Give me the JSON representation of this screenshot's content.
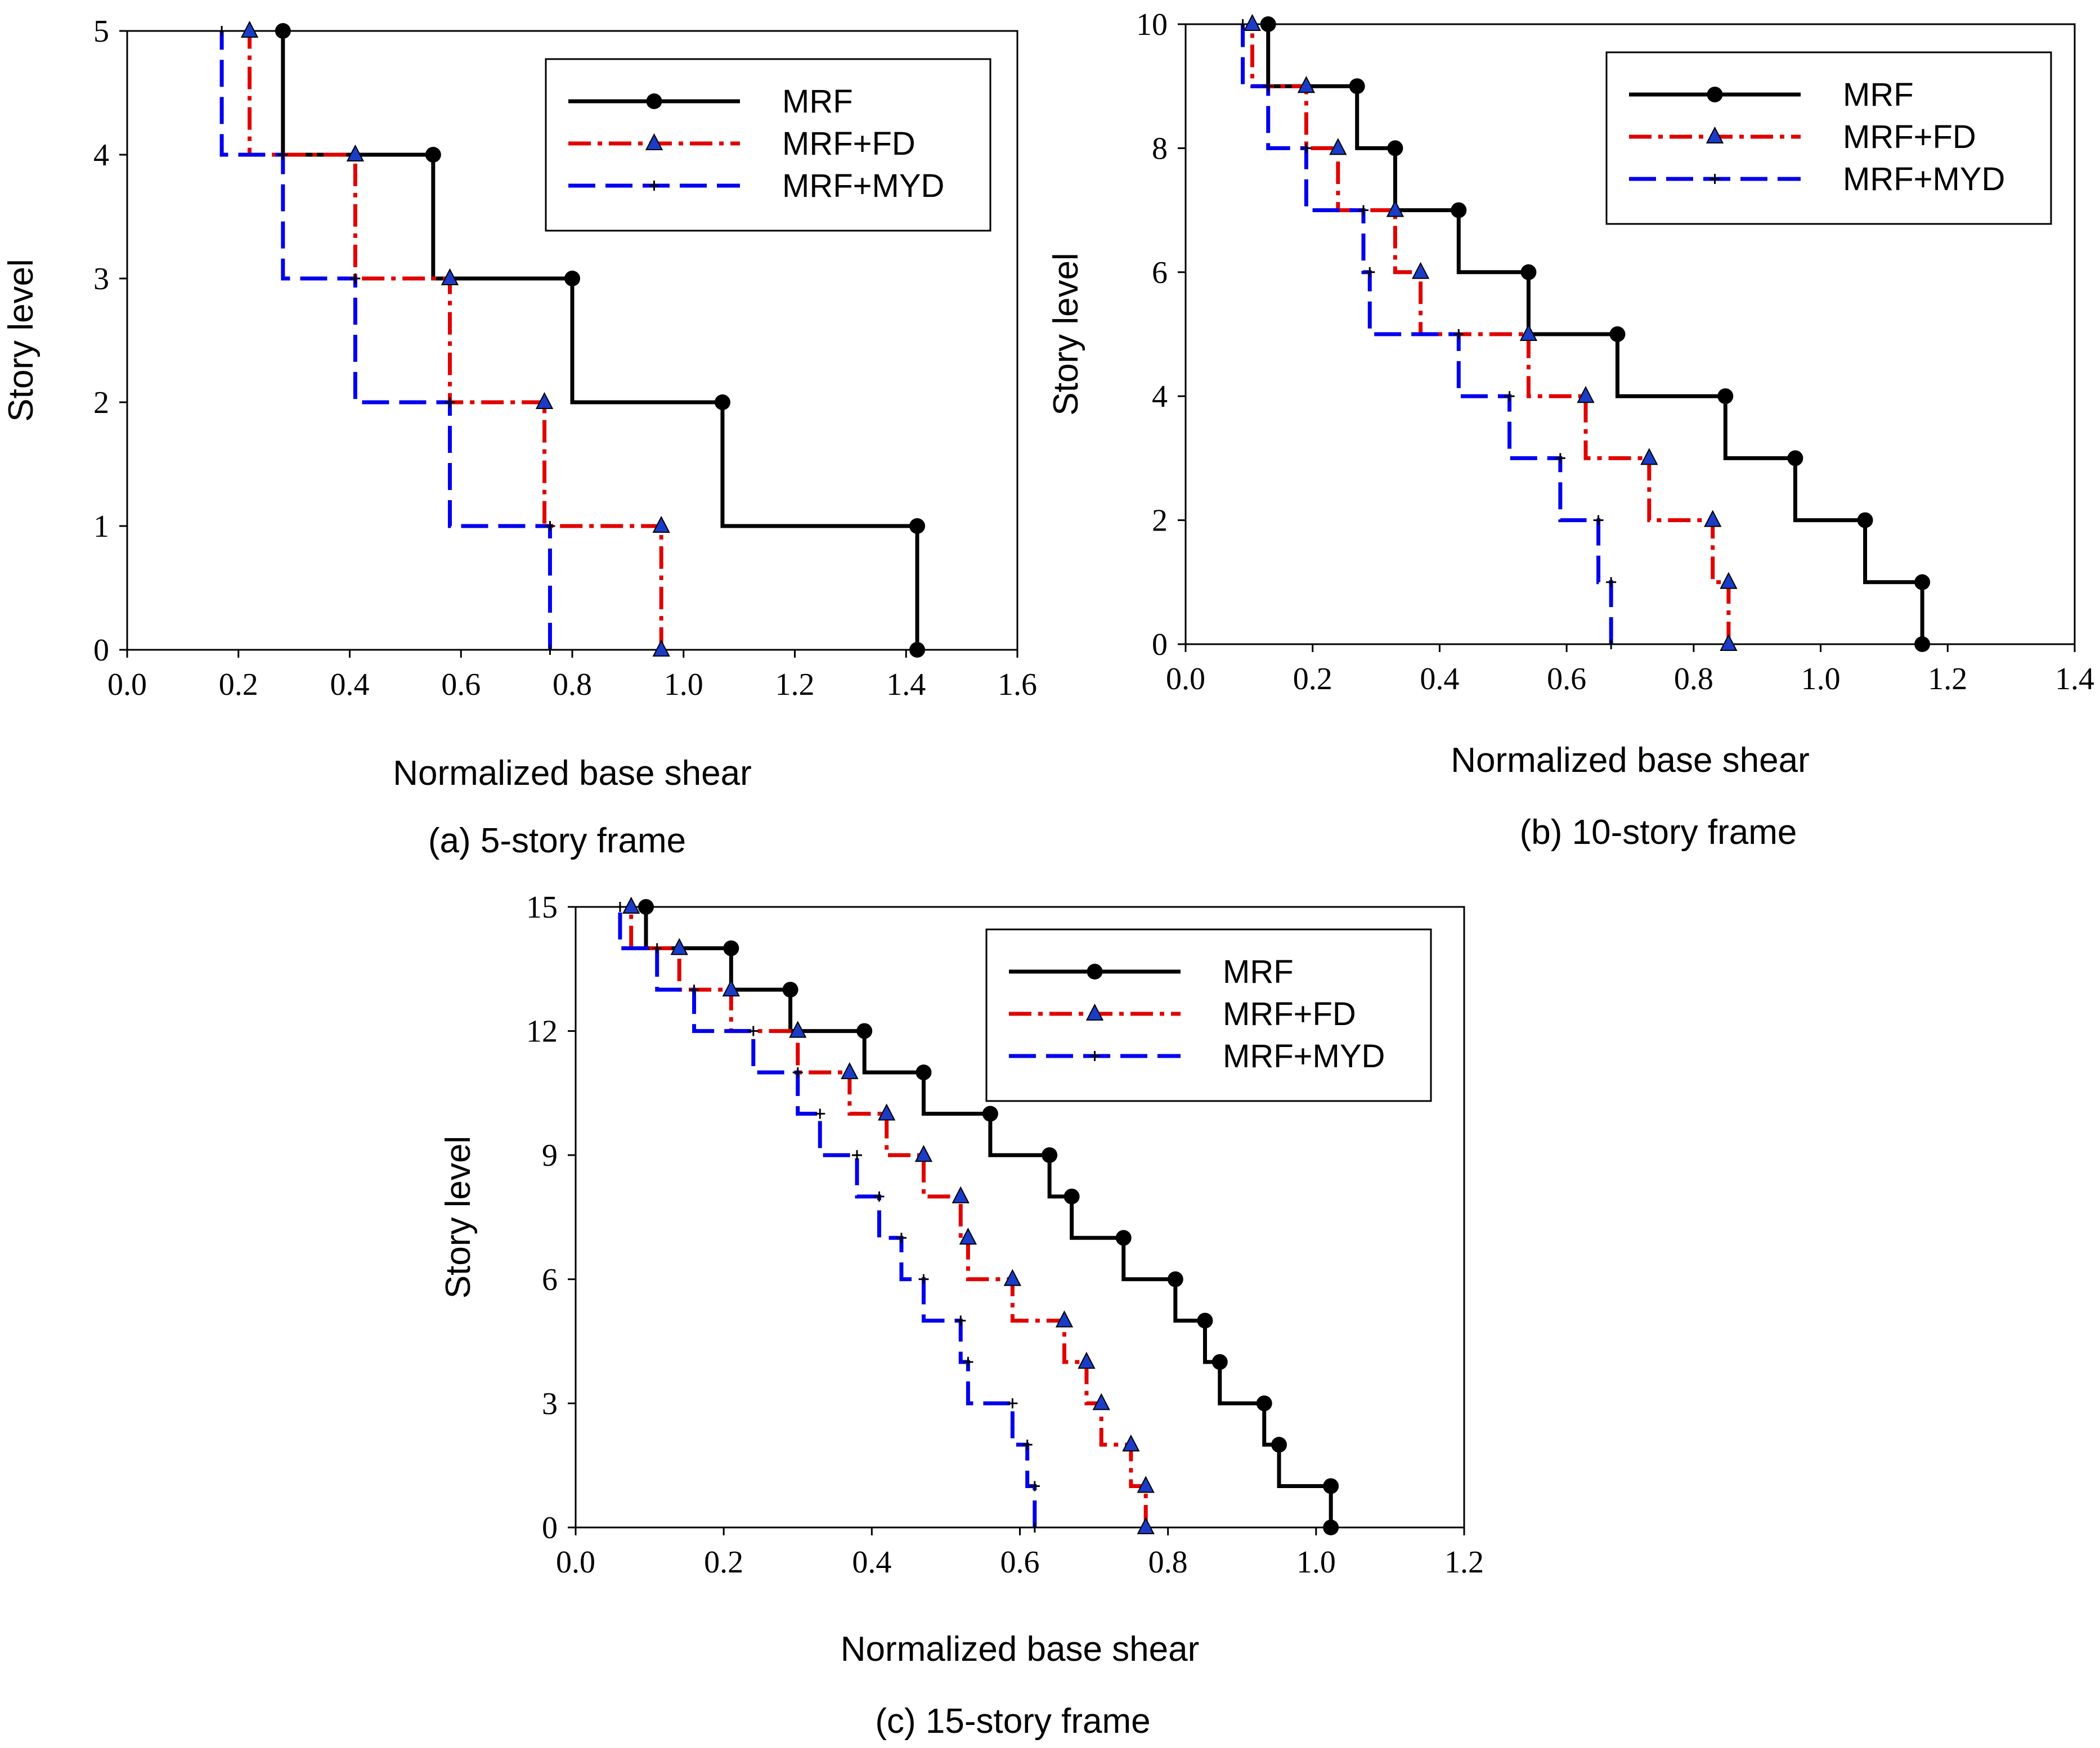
{
  "legend_labels": [
    "MRF",
    "MRF+FD",
    "MRF+MYD"
  ],
  "colors": {
    "MRF": "#000000",
    "MRF+FD": "#e00000",
    "MRF+MYD": "#0000ee"
  },
  "chart_data": [
    {
      "type": "line",
      "title": "(a) 5-story frame",
      "xlabel": "Normalized base shear",
      "ylabel": "Story level",
      "xlim": [
        0.0,
        1.6
      ],
      "ylim": [
        0,
        5
      ],
      "xticks": [
        "0.0",
        "0.2",
        "0.4",
        "0.6",
        "0.8",
        "1.0",
        "1.2",
        "1.4",
        "1.6"
      ],
      "yticks": [
        "0",
        "1",
        "2",
        "3",
        "4",
        "5"
      ],
      "legend_position": "top-right",
      "series": [
        {
          "name": "MRF",
          "marker": "circle",
          "style": "solid",
          "values": [
            1.42,
            1.07,
            0.8,
            0.55,
            0.28
          ]
        },
        {
          "name": "MRF+FD",
          "marker": "triangle",
          "style": "dashdot",
          "values": [
            0.96,
            0.75,
            0.58,
            0.41,
            0.22
          ]
        },
        {
          "name": "MRF+MYD",
          "marker": "plus",
          "style": "dash",
          "values": [
            0.76,
            0.58,
            0.41,
            0.28,
            0.17
          ]
        }
      ]
    },
    {
      "type": "line",
      "title": "(b) 10-story frame",
      "xlabel": "Normalized base shear",
      "ylabel": "Story level",
      "xlim": [
        0.0,
        1.4
      ],
      "ylim": [
        0,
        10
      ],
      "xticks": [
        "0.0",
        "0.2",
        "0.4",
        "0.6",
        "0.8",
        "1.0",
        "1.2",
        "1.4"
      ],
      "yticks": [
        "0",
        "2",
        "4",
        "6",
        "8",
        "10"
      ],
      "legend_position": "top-right",
      "series": [
        {
          "name": "MRF",
          "marker": "circle",
          "style": "solid",
          "values": [
            1.16,
            1.07,
            0.96,
            0.85,
            0.68,
            0.54,
            0.43,
            0.33,
            0.27,
            0.13
          ]
        },
        {
          "name": "MRF+FD",
          "marker": "triangle",
          "style": "dashdot",
          "values": [
            0.855,
            0.83,
            0.73,
            0.63,
            0.54,
            0.37,
            0.33,
            0.24,
            0.19,
            0.105
          ]
        },
        {
          "name": "MRF+MYD",
          "marker": "plus",
          "style": "dash",
          "values": [
            0.67,
            0.65,
            0.59,
            0.51,
            0.43,
            0.29,
            0.28,
            0.19,
            0.13,
            0.09
          ]
        }
      ]
    },
    {
      "type": "line",
      "title": "(c) 15-story frame",
      "xlabel": "Normalized base shear",
      "ylabel": "Story level",
      "xlim": [
        0.0,
        1.2
      ],
      "ylim": [
        0,
        15
      ],
      "xticks": [
        "0.0",
        "0.2",
        "0.4",
        "0.6",
        "0.8",
        "1.0",
        "1.2"
      ],
      "yticks": [
        "0",
        "3",
        "6",
        "9",
        "12",
        "15"
      ],
      "legend_position": "top-right",
      "series": [
        {
          "name": "MRF",
          "marker": "circle",
          "style": "solid",
          "values": [
            1.02,
            0.95,
            0.93,
            0.87,
            0.85,
            0.81,
            0.74,
            0.67,
            0.64,
            0.56,
            0.47,
            0.39,
            0.29,
            0.21,
            0.095
          ]
        },
        {
          "name": "MRF+FD",
          "marker": "triangle",
          "style": "dashdot",
          "values": [
            0.77,
            0.75,
            0.71,
            0.69,
            0.66,
            0.59,
            0.53,
            0.52,
            0.47,
            0.42,
            0.37,
            0.3,
            0.21,
            0.14,
            0.075
          ]
        },
        {
          "name": "MRF+MYD",
          "marker": "plus",
          "style": "dash",
          "values": [
            0.62,
            0.61,
            0.59,
            0.53,
            0.52,
            0.47,
            0.44,
            0.41,
            0.38,
            0.33,
            0.3,
            0.24,
            0.16,
            0.11,
            0.06
          ]
        }
      ]
    }
  ]
}
